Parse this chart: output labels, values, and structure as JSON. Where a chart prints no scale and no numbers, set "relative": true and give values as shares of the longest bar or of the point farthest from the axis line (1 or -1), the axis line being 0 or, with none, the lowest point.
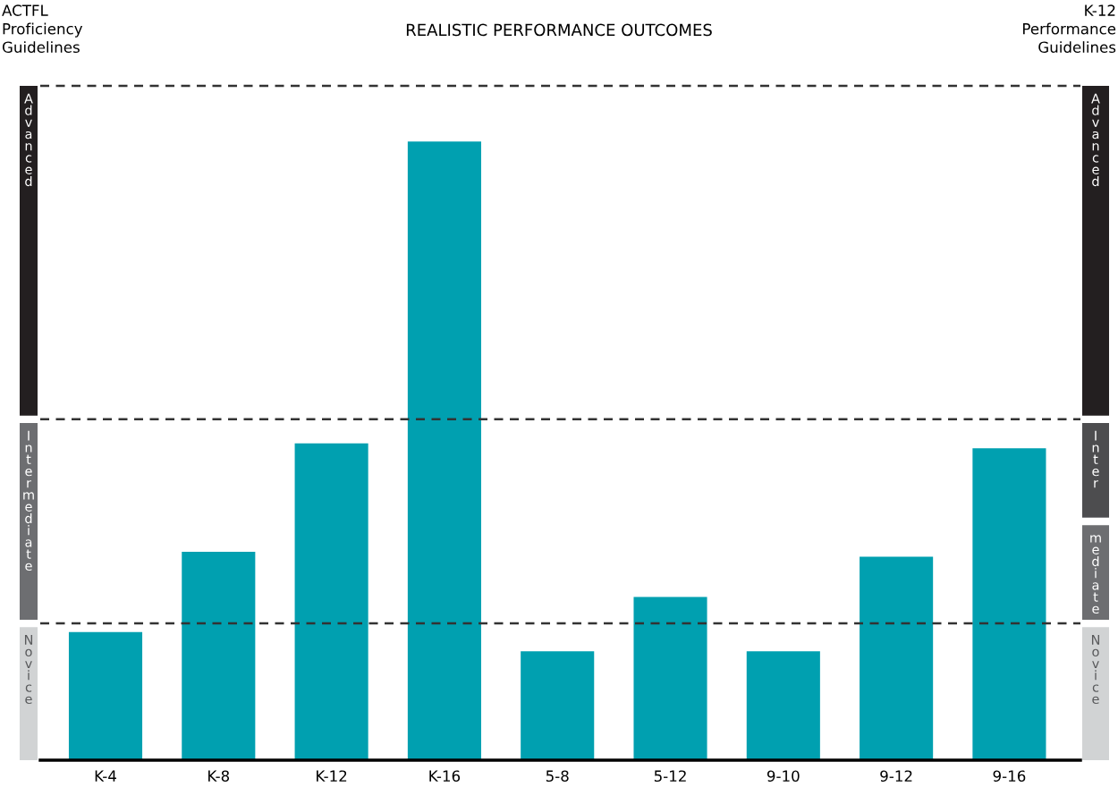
{
  "chart_data": {
    "type": "bar",
    "title": "REALISTIC PERFORMANCE OUTCOMES",
    "categories": [
      "K-4",
      "K-8",
      "K-12",
      "K-16",
      "5-8",
      "5-12",
      "9-10",
      "9-12",
      "9-16"
    ],
    "values": [
      0.207,
      0.337,
      0.512,
      1,
      0.176,
      0.264,
      0.176,
      0.329,
      0.504
    ],
    "color": "#00a0b0",
    "relative": true,
    "ref_lines": [
      {
        "axis": "y",
        "value": 0.221,
        "color": "#333333",
        "line_style": "dashed"
      },
      {
        "axis": "y",
        "value": 0.551,
        "color": "#333333",
        "line_style": "dashed"
      },
      {
        "axis": "y",
        "value": 1.09,
        "color": "#333333",
        "line_style": "dashed"
      }
    ],
    "annotations": [
      "ACTFL\nProficiency\nGuidelines",
      "K-12\nPerformance\nGuidelines",
      "Advanced",
      "Intermediate",
      "Novice",
      "Advanced",
      "Inter",
      "mediate",
      "Novice"
    ]
  }
}
